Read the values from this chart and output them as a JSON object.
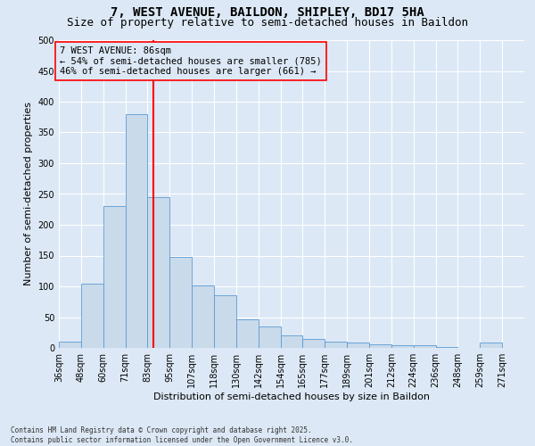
{
  "title1": "7, WEST AVENUE, BAILDON, SHIPLEY, BD17 5HA",
  "title2": "Size of property relative to semi-detached houses in Baildon",
  "xlabel": "Distribution of semi-detached houses by size in Baildon",
  "ylabel": "Number of semi-detached properties",
  "footnote": "Contains HM Land Registry data © Crown copyright and database right 2025.\nContains public sector information licensed under the Open Government Licence v3.0.",
  "bin_labels": [
    "36sqm",
    "48sqm",
    "60sqm",
    "71sqm",
    "83sqm",
    "95sqm",
    "107sqm",
    "118sqm",
    "130sqm",
    "142sqm",
    "154sqm",
    "165sqm",
    "177sqm",
    "189sqm",
    "201sqm",
    "212sqm",
    "224sqm",
    "236sqm",
    "248sqm",
    "259sqm",
    "271sqm"
  ],
  "bar_values": [
    10,
    105,
    230,
    380,
    245,
    148,
    101,
    85,
    47,
    35,
    20,
    14,
    10,
    9,
    6,
    4,
    4,
    1,
    0,
    8,
    0
  ],
  "n_bins": 21,
  "property_bin_index": 4,
  "property_label": "7 WEST AVENUE: 86sqm",
  "pct_smaller": 54,
  "n_smaller": 785,
  "pct_larger": 46,
  "n_larger": 661,
  "bar_color": "#c9daea",
  "bar_edge_color": "#5b9bd5",
  "vline_color": "red",
  "annotation_box_edge": "red",
  "ylim": [
    0,
    500
  ],
  "yticks": [
    0,
    50,
    100,
    150,
    200,
    250,
    300,
    350,
    400,
    450,
    500
  ],
  "background_color": "#dce8f5",
  "grid_color": "white",
  "title_fontsize": 10,
  "subtitle_fontsize": 9,
  "axis_label_fontsize": 8,
  "tick_fontsize": 7,
  "annotation_fontsize": 7.5,
  "footnote_fontsize": 5.5
}
